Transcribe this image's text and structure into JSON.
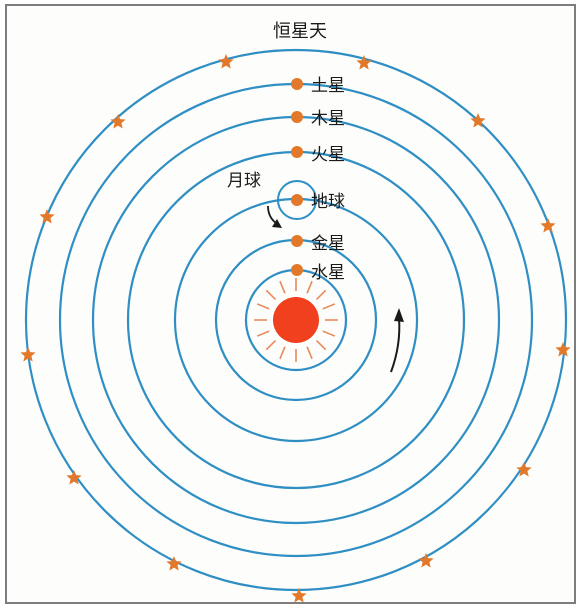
{
  "title": "恒星天",
  "sun": {
    "color": "#f0401e",
    "ray_color": "#e88a5a"
  },
  "orbit_color": "#2f8fc4",
  "planet_color": "#e2782a",
  "star_color": "#e2782a",
  "arrow_color": "#1a1a1a",
  "labels": {
    "saturn": "土星",
    "jupiter": "木星",
    "mars": "火星",
    "earth": "地球",
    "venus": "金星",
    "mercury": "水星",
    "moon": "月球"
  }
}
